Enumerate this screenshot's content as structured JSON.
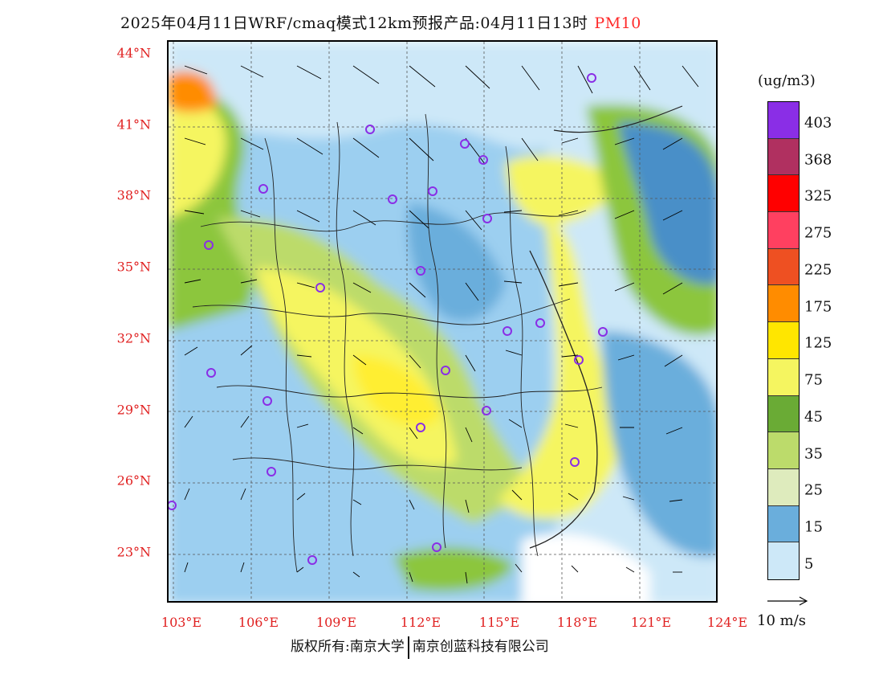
{
  "title": {
    "main": "2025年04月11日WRF/cmaq模式12km预报产品:04月11日13时",
    "pollutant": "PM10"
  },
  "axes": {
    "lat_labels": [
      "44°N",
      "41°N",
      "38°N",
      "35°N",
      "32°N",
      "29°N",
      "26°N",
      "23°N"
    ],
    "lon_labels": [
      "103°E",
      "106°E",
      "109°E",
      "112°E",
      "115°E",
      "118°E",
      "121°E",
      "124°E"
    ]
  },
  "legend": {
    "unit": "(ug/m3)",
    "labels": [
      "403",
      "368",
      "325",
      "275",
      "225",
      "175",
      "125",
      "75",
      "45",
      "35",
      "25",
      "15",
      "5"
    ],
    "colors": [
      "#8a2ee6",
      "#b048c8",
      "#b03060",
      "#c8157a",
      "#ff0000",
      "#ff4060",
      "#ff6666",
      "#ee5022",
      "#ff8c00",
      "#f5b030",
      "#ffe600",
      "#ffee33",
      "#f5f560",
      "#6aab35",
      "#8cc63e",
      "#bcdb6b",
      "#cfe59a",
      "#deebbd",
      "#4a8fc8",
      "#6aaedc",
      "#9ccff0",
      "#cde8f8",
      "#ffffff"
    ],
    "wind_reference": "10 m/s"
  },
  "footer": {
    "copyright": "版权所有:南京大学",
    "company": "南京创蓝科技有限公司"
  },
  "chart_data": {
    "type": "heatmap",
    "variable": "PM10",
    "unit": "ug/m3",
    "xlim": [
      103,
      124
    ],
    "ylim": [
      21,
      44
    ],
    "color_levels": [
      5,
      15,
      25,
      35,
      45,
      75,
      125,
      175,
      225,
      275,
      325,
      368,
      403
    ]
  }
}
